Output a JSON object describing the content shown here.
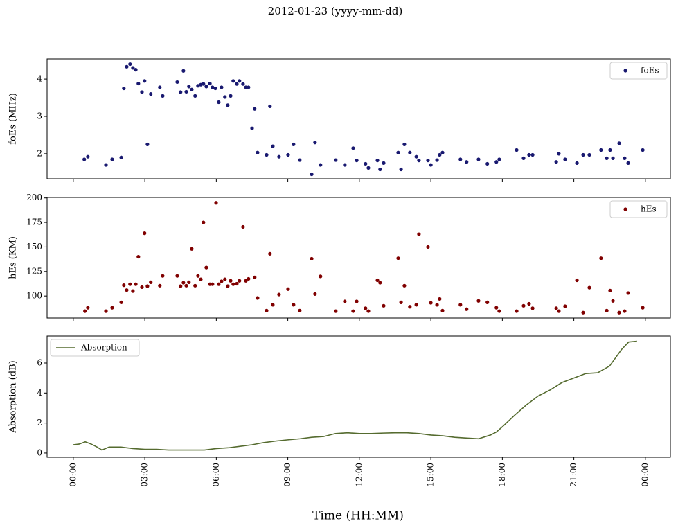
{
  "title": "2012-01-23 (yyyy-mm-dd)",
  "x_label": "Time (HH:MM)",
  "chart_data": [
    {
      "type": "scatter",
      "y_label": "foEs (MHz)",
      "legend": "upper right",
      "xlim": [
        -1.1,
        25.05
      ],
      "xticks": [
        0,
        3,
        6,
        9,
        12,
        15,
        18,
        21,
        24
      ],
      "ylim": [
        1.33,
        4.54
      ],
      "yticks": [
        2,
        3,
        4
      ],
      "x": [
        0.46,
        0.61,
        1.37,
        1.63,
        2.01,
        2.12,
        2.24,
        2.38,
        2.5,
        2.62,
        2.73,
        2.88,
        2.99,
        3.11,
        3.25,
        3.63,
        3.75,
        4.36,
        4.5,
        4.62,
        4.74,
        4.85,
        4.97,
        5.11,
        5.23,
        5.35,
        5.46,
        5.58,
        5.73,
        5.84,
        5.96,
        6.1,
        6.22,
        6.36,
        6.48,
        6.6,
        6.71,
        6.86,
        6.97,
        7.12,
        7.24,
        7.35,
        7.5,
        7.61,
        7.73,
        8.11,
        8.25,
        8.37,
        8.63,
        9.01,
        9.24,
        9.5,
        10,
        10.14,
        10.37,
        11.01,
        11.39,
        11.74,
        11.89,
        12.26,
        12.38,
        12.76,
        12.87,
        13.02,
        13.63,
        13.75,
        13.89,
        14.12,
        14.39,
        14.5,
        14.88,
        15,
        15.26,
        15.37,
        15.49,
        16.24,
        16.5,
        17,
        17.37,
        17.75,
        17.87,
        18.6,
        18.89,
        19.12,
        19.27,
        20.26,
        20.37,
        20.63,
        21.13,
        21.39,
        21.65,
        22.14,
        22.38,
        22.52,
        22.64,
        22.9,
        23.13,
        23.28,
        23.89
      ],
      "series": [
        {
          "name": "foEs",
          "color": "#191970",
          "values": [
            1.85,
            1.92,
            1.7,
            1.85,
            1.9,
            3.75,
            4.33,
            4.4,
            4.3,
            4.25,
            3.88,
            3.65,
            3.95,
            2.25,
            3.6,
            3.78,
            3.55,
            3.92,
            3.65,
            4.22,
            3.66,
            3.8,
            3.72,
            3.55,
            3.82,
            3.85,
            3.87,
            3.8,
            3.88,
            3.78,
            3.75,
            3.38,
            3.78,
            3.52,
            3.3,
            3.55,
            3.95,
            3.87,
            3.95,
            3.87,
            3.78,
            3.78,
            2.68,
            3.2,
            2.03,
            1.97,
            3.27,
            2.2,
            1.92,
            1.97,
            2.25,
            1.83,
            1.45,
            2.3,
            1.7,
            1.83,
            1.7,
            2.15,
            1.82,
            1.73,
            1.62,
            1.82,
            1.58,
            1.75,
            2.03,
            1.58,
            2.25,
            2.03,
            1.92,
            1.82,
            1.82,
            1.7,
            1.83,
            1.97,
            2.03,
            1.85,
            1.78,
            1.85,
            1.73,
            1.78,
            1.85,
            2.1,
            1.88,
            1.97,
            1.97,
            1.78,
            2,
            1.85,
            1.75,
            1.97,
            1.97,
            2.1,
            1.88,
            2.1,
            1.88,
            2.28,
            1.88,
            1.75,
            2.1
          ]
        }
      ]
    },
    {
      "type": "scatter",
      "y_label": "hEs (KM)",
      "legend": "upper right",
      "xlim": [
        -1.1,
        25.05
      ],
      "xticks": [
        0,
        3,
        6,
        9,
        12,
        15,
        18,
        21,
        24
      ],
      "ylim": [
        77.5,
        200.5
      ],
      "yticks": [
        100,
        125,
        150,
        175,
        200
      ],
      "x": [
        0.49,
        0.61,
        1.37,
        1.63,
        2.01,
        2.12,
        2.24,
        2.38,
        2.5,
        2.62,
        2.73,
        2.88,
        2.99,
        3.11,
        3.25,
        3.63,
        3.75,
        4.36,
        4.5,
        4.62,
        4.74,
        4.85,
        4.97,
        5.11,
        5.23,
        5.35,
        5.46,
        5.58,
        5.73,
        5.84,
        5.99,
        6.1,
        6.22,
        6.36,
        6.48,
        6.6,
        6.71,
        6.86,
        6.97,
        7.12,
        7.24,
        7.35,
        7.61,
        7.73,
        8.11,
        8.25,
        8.37,
        8.63,
        9.01,
        9.24,
        9.5,
        10,
        10.14,
        10.37,
        11.01,
        11.39,
        11.74,
        11.89,
        12.26,
        12.38,
        12.76,
        12.87,
        13.02,
        13.63,
        13.75,
        13.89,
        14.12,
        14.39,
        14.5,
        14.88,
        15,
        15.26,
        15.37,
        15.49,
        16.24,
        16.5,
        17,
        17.37,
        17.75,
        17.87,
        18.6,
        18.89,
        19.12,
        19.27,
        20.26,
        20.37,
        20.63,
        21.13,
        21.39,
        21.65,
        22.14,
        22.38,
        22.52,
        22.64,
        22.9,
        23.13,
        23.28,
        23.89
      ],
      "series": [
        {
          "name": "hEs",
          "color": "#800000",
          "values": [
            84.5,
            88,
            84.5,
            88,
            93.5,
            111,
            106,
            112,
            105,
            112,
            140,
            109,
            164,
            110,
            114,
            110.5,
            120.5,
            120.5,
            110,
            113.5,
            110.5,
            114,
            148,
            110.5,
            120.5,
            117,
            175,
            129,
            112,
            112,
            195,
            112,
            115,
            117,
            110,
            115.5,
            112,
            112.5,
            115.5,
            170.5,
            115.5,
            117.5,
            119,
            98,
            85,
            143,
            91,
            101.5,
            107,
            91,
            85,
            138,
            102,
            120,
            84.5,
            94.5,
            84.5,
            94.5,
            87.5,
            84.5,
            116,
            113.5,
            90,
            138.5,
            93.5,
            110.5,
            89,
            91,
            163,
            150,
            93,
            91,
            97,
            85,
            91,
            86.5,
            95,
            93.5,
            88,
            84.5,
            84.5,
            90,
            92,
            87.5,
            87.5,
            84.5,
            89.5,
            116,
            83,
            108.5,
            138.5,
            85,
            105.5,
            95,
            83,
            84.5,
            103,
            88
          ]
        }
      ]
    },
    {
      "type": "line",
      "y_label": "Absorption (dB)",
      "legend": "upper left",
      "xlim": [
        -1.1,
        25.05
      ],
      "xticks": [
        {
          "value": 0,
          "label": "00:00"
        },
        {
          "value": 3,
          "label": "03:00"
        },
        {
          "value": 6,
          "label": "06:00"
        },
        {
          "value": 9,
          "label": "09:00"
        },
        {
          "value": 12,
          "label": "12:00"
        },
        {
          "value": 15,
          "label": "15:00"
        },
        {
          "value": 18,
          "label": "18:00"
        },
        {
          "value": 21,
          "label": "21:00"
        },
        {
          "value": 24,
          "label": "00:00"
        }
      ],
      "ylim": [
        -0.28,
        7.8
      ],
      "yticks": [
        0,
        2,
        4,
        6
      ],
      "x": [
        0,
        0.25,
        0.5,
        0.75,
        1,
        1.2,
        1.5,
        2,
        2.5,
        3,
        3.5,
        4,
        4.5,
        5,
        5.5,
        6,
        6.5,
        7,
        7.5,
        8,
        8.5,
        9,
        9.5,
        10,
        10.5,
        11,
        11.5,
        12,
        12.5,
        13,
        13.5,
        14,
        14.5,
        15,
        15.5,
        16,
        16.5,
        17,
        17.5,
        17.75,
        18,
        18.5,
        19,
        19.5,
        20,
        20.5,
        21,
        21.5,
        22,
        22.5,
        23,
        23.3,
        23.65
      ],
      "series": [
        {
          "name": "Absorption",
          "color": "#556b2f",
          "values": [
            0.55,
            0.6,
            0.75,
            0.6,
            0.4,
            0.2,
            0.4,
            0.4,
            0.3,
            0.25,
            0.25,
            0.2,
            0.2,
            0.2,
            0.2,
            0.3,
            0.35,
            0.45,
            0.55,
            0.7,
            0.8,
            0.88,
            0.95,
            1.05,
            1.1,
            1.3,
            1.35,
            1.3,
            1.3,
            1.33,
            1.35,
            1.35,
            1.3,
            1.2,
            1.15,
            1.05,
            1.0,
            0.95,
            1.2,
            1.4,
            1.75,
            2.5,
            3.2,
            3.8,
            4.2,
            4.7,
            5.0,
            5.3,
            5.35,
            5.8,
            6.9,
            7.4,
            7.45
          ]
        }
      ]
    }
  ]
}
